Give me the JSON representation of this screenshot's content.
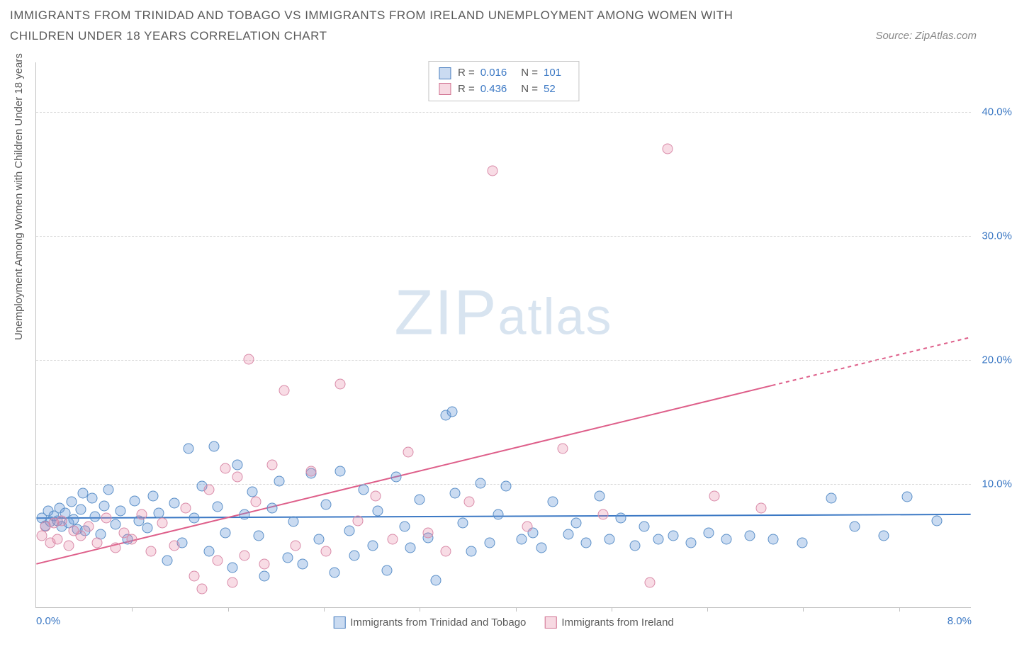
{
  "header": {
    "title": "IMMIGRANTS FROM TRINIDAD AND TOBAGO VS IMMIGRANTS FROM IRELAND UNEMPLOYMENT AMONG WOMEN WITH CHILDREN UNDER 18 YEARS CORRELATION CHART",
    "source": "Source: ZipAtlas.com"
  },
  "chart": {
    "type": "scatter",
    "ylabel": "Unemployment Among Women with Children Under 18 years",
    "xlim": [
      0,
      8
    ],
    "ylim": [
      0,
      44
    ],
    "xtick_labels": [
      "0.0%",
      "8.0%"
    ],
    "xtick_positions": [
      0,
      8
    ],
    "xtick_minor": [
      0.82,
      1.64,
      2.46,
      3.28,
      4.1,
      4.92,
      5.74,
      6.56,
      7.38
    ],
    "ytick_labels": [
      "10.0%",
      "20.0%",
      "30.0%",
      "40.0%"
    ],
    "ytick_positions": [
      10,
      20,
      30,
      40
    ],
    "grid_y": [
      10,
      20,
      30,
      40
    ],
    "background_color": "#ffffff",
    "grid_color": "#d8d8d8",
    "axis_color": "#c0c0c0",
    "tick_label_color": "#3b78c4",
    "label_color": "#5a5a5a",
    "label_fontsize": 15,
    "marker_radius": 7.5,
    "series": [
      {
        "id": "blue",
        "label": "Immigrants from Trinidad and Tobago",
        "fill": "rgba(102,153,214,0.35)",
        "stroke": "#5a8fc8",
        "line_color": "#3b78c4",
        "line_width": 2,
        "R": "0.016",
        "N": "101",
        "trend": {
          "x1": 0,
          "y1": 7.2,
          "x2": 8,
          "y2": 7.5,
          "dash_from_x": null
        },
        "points": [
          [
            0.05,
            7.2
          ],
          [
            0.08,
            6.6
          ],
          [
            0.1,
            7.8
          ],
          [
            0.12,
            6.9
          ],
          [
            0.15,
            7.4
          ],
          [
            0.18,
            7.0
          ],
          [
            0.2,
            8.0
          ],
          [
            0.22,
            6.5
          ],
          [
            0.25,
            7.6
          ],
          [
            0.28,
            6.8
          ],
          [
            0.3,
            8.5
          ],
          [
            0.32,
            7.1
          ],
          [
            0.35,
            6.3
          ],
          [
            0.38,
            7.9
          ],
          [
            0.4,
            9.2
          ],
          [
            0.42,
            6.2
          ],
          [
            0.48,
            8.8
          ],
          [
            0.5,
            7.3
          ],
          [
            0.55,
            5.9
          ],
          [
            0.58,
            8.2
          ],
          [
            0.62,
            9.5
          ],
          [
            0.68,
            6.7
          ],
          [
            0.72,
            7.8
          ],
          [
            0.78,
            5.5
          ],
          [
            0.84,
            8.6
          ],
          [
            0.88,
            7.0
          ],
          [
            0.95,
            6.4
          ],
          [
            1.0,
            9.0
          ],
          [
            1.05,
            7.6
          ],
          [
            1.12,
            3.8
          ],
          [
            1.18,
            8.4
          ],
          [
            1.25,
            5.2
          ],
          [
            1.3,
            12.8
          ],
          [
            1.35,
            7.2
          ],
          [
            1.42,
            9.8
          ],
          [
            1.48,
            4.5
          ],
          [
            1.52,
            13.0
          ],
          [
            1.55,
            8.1
          ],
          [
            1.62,
            6.0
          ],
          [
            1.68,
            3.2
          ],
          [
            1.72,
            11.5
          ],
          [
            1.78,
            7.5
          ],
          [
            1.85,
            9.3
          ],
          [
            1.9,
            5.8
          ],
          [
            1.95,
            2.5
          ],
          [
            2.02,
            8.0
          ],
          [
            2.08,
            10.2
          ],
          [
            2.15,
            4.0
          ],
          [
            2.2,
            6.9
          ],
          [
            2.28,
            3.5
          ],
          [
            2.35,
            10.8
          ],
          [
            2.42,
            5.5
          ],
          [
            2.48,
            8.3
          ],
          [
            2.55,
            2.8
          ],
          [
            2.6,
            11.0
          ],
          [
            2.68,
            6.2
          ],
          [
            2.72,
            4.2
          ],
          [
            2.8,
            9.5
          ],
          [
            2.88,
            5.0
          ],
          [
            2.92,
            7.8
          ],
          [
            3.0,
            3.0
          ],
          [
            3.08,
            10.5
          ],
          [
            3.15,
            6.5
          ],
          [
            3.2,
            4.8
          ],
          [
            3.28,
            8.7
          ],
          [
            3.35,
            5.6
          ],
          [
            3.42,
            2.2
          ],
          [
            3.5,
            15.5
          ],
          [
            3.56,
            15.8
          ],
          [
            3.58,
            9.2
          ],
          [
            3.65,
            6.8
          ],
          [
            3.72,
            4.5
          ],
          [
            3.8,
            10.0
          ],
          [
            3.88,
            5.2
          ],
          [
            3.95,
            7.5
          ],
          [
            4.02,
            9.8
          ],
          [
            4.15,
            5.5
          ],
          [
            4.25,
            6.0
          ],
          [
            4.32,
            4.8
          ],
          [
            4.42,
            8.5
          ],
          [
            4.55,
            5.9
          ],
          [
            4.62,
            6.8
          ],
          [
            4.7,
            5.2
          ],
          [
            4.82,
            9.0
          ],
          [
            4.9,
            5.5
          ],
          [
            5.0,
            7.2
          ],
          [
            5.12,
            5.0
          ],
          [
            5.2,
            6.5
          ],
          [
            5.32,
            5.5
          ],
          [
            5.45,
            5.8
          ],
          [
            5.6,
            5.2
          ],
          [
            5.75,
            6.0
          ],
          [
            5.9,
            5.5
          ],
          [
            6.1,
            5.8
          ],
          [
            6.3,
            5.5
          ],
          [
            6.55,
            5.2
          ],
          [
            6.8,
            8.8
          ],
          [
            7.0,
            6.5
          ],
          [
            7.25,
            5.8
          ],
          [
            7.45,
            8.9
          ],
          [
            7.7,
            7.0
          ]
        ]
      },
      {
        "id": "pink",
        "label": "Immigrants from Ireland",
        "fill": "rgba(230,130,160,0.28)",
        "stroke": "#d98aa8",
        "line_color": "#de5f8a",
        "line_width": 2,
        "R": "0.436",
        "N": "52",
        "trend": {
          "x1": 0,
          "y1": 3.5,
          "x2": 8,
          "y2": 21.8,
          "dash_from_x": 6.3
        },
        "points": [
          [
            0.05,
            5.8
          ],
          [
            0.08,
            6.5
          ],
          [
            0.12,
            5.2
          ],
          [
            0.15,
            6.8
          ],
          [
            0.18,
            5.5
          ],
          [
            0.22,
            7.0
          ],
          [
            0.28,
            5.0
          ],
          [
            0.32,
            6.2
          ],
          [
            0.38,
            5.8
          ],
          [
            0.45,
            6.5
          ],
          [
            0.52,
            5.2
          ],
          [
            0.6,
            7.2
          ],
          [
            0.68,
            4.8
          ],
          [
            0.75,
            6.0
          ],
          [
            0.82,
            5.5
          ],
          [
            0.9,
            7.5
          ],
          [
            0.98,
            4.5
          ],
          [
            1.08,
            6.8
          ],
          [
            1.18,
            5.0
          ],
          [
            1.28,
            8.0
          ],
          [
            1.35,
            2.5
          ],
          [
            1.42,
            1.5
          ],
          [
            1.48,
            9.5
          ],
          [
            1.55,
            3.8
          ],
          [
            1.62,
            11.2
          ],
          [
            1.68,
            2.0
          ],
          [
            1.72,
            10.5
          ],
          [
            1.78,
            4.2
          ],
          [
            1.82,
            20.0
          ],
          [
            1.88,
            8.5
          ],
          [
            1.95,
            3.5
          ],
          [
            2.02,
            11.5
          ],
          [
            2.12,
            17.5
          ],
          [
            2.22,
            5.0
          ],
          [
            2.35,
            11.0
          ],
          [
            2.48,
            4.5
          ],
          [
            2.6,
            18.0
          ],
          [
            2.75,
            7.0
          ],
          [
            2.9,
            9.0
          ],
          [
            3.05,
            5.5
          ],
          [
            3.18,
            12.5
          ],
          [
            3.35,
            6.0
          ],
          [
            3.5,
            4.5
          ],
          [
            3.7,
            8.5
          ],
          [
            3.9,
            35.2
          ],
          [
            4.2,
            6.5
          ],
          [
            4.5,
            12.8
          ],
          [
            4.85,
            7.5
          ],
          [
            5.25,
            2.0
          ],
          [
            5.4,
            37.0
          ],
          [
            5.8,
            9.0
          ],
          [
            6.2,
            8.0
          ]
        ]
      }
    ],
    "legend_bottom": [
      {
        "swatch": "blue",
        "label": "Immigrants from Trinidad and Tobago"
      },
      {
        "swatch": "pink",
        "label": "Immigrants from Ireland"
      }
    ]
  },
  "watermark": {
    "zip": "ZIP",
    "atlas": "atlas"
  }
}
